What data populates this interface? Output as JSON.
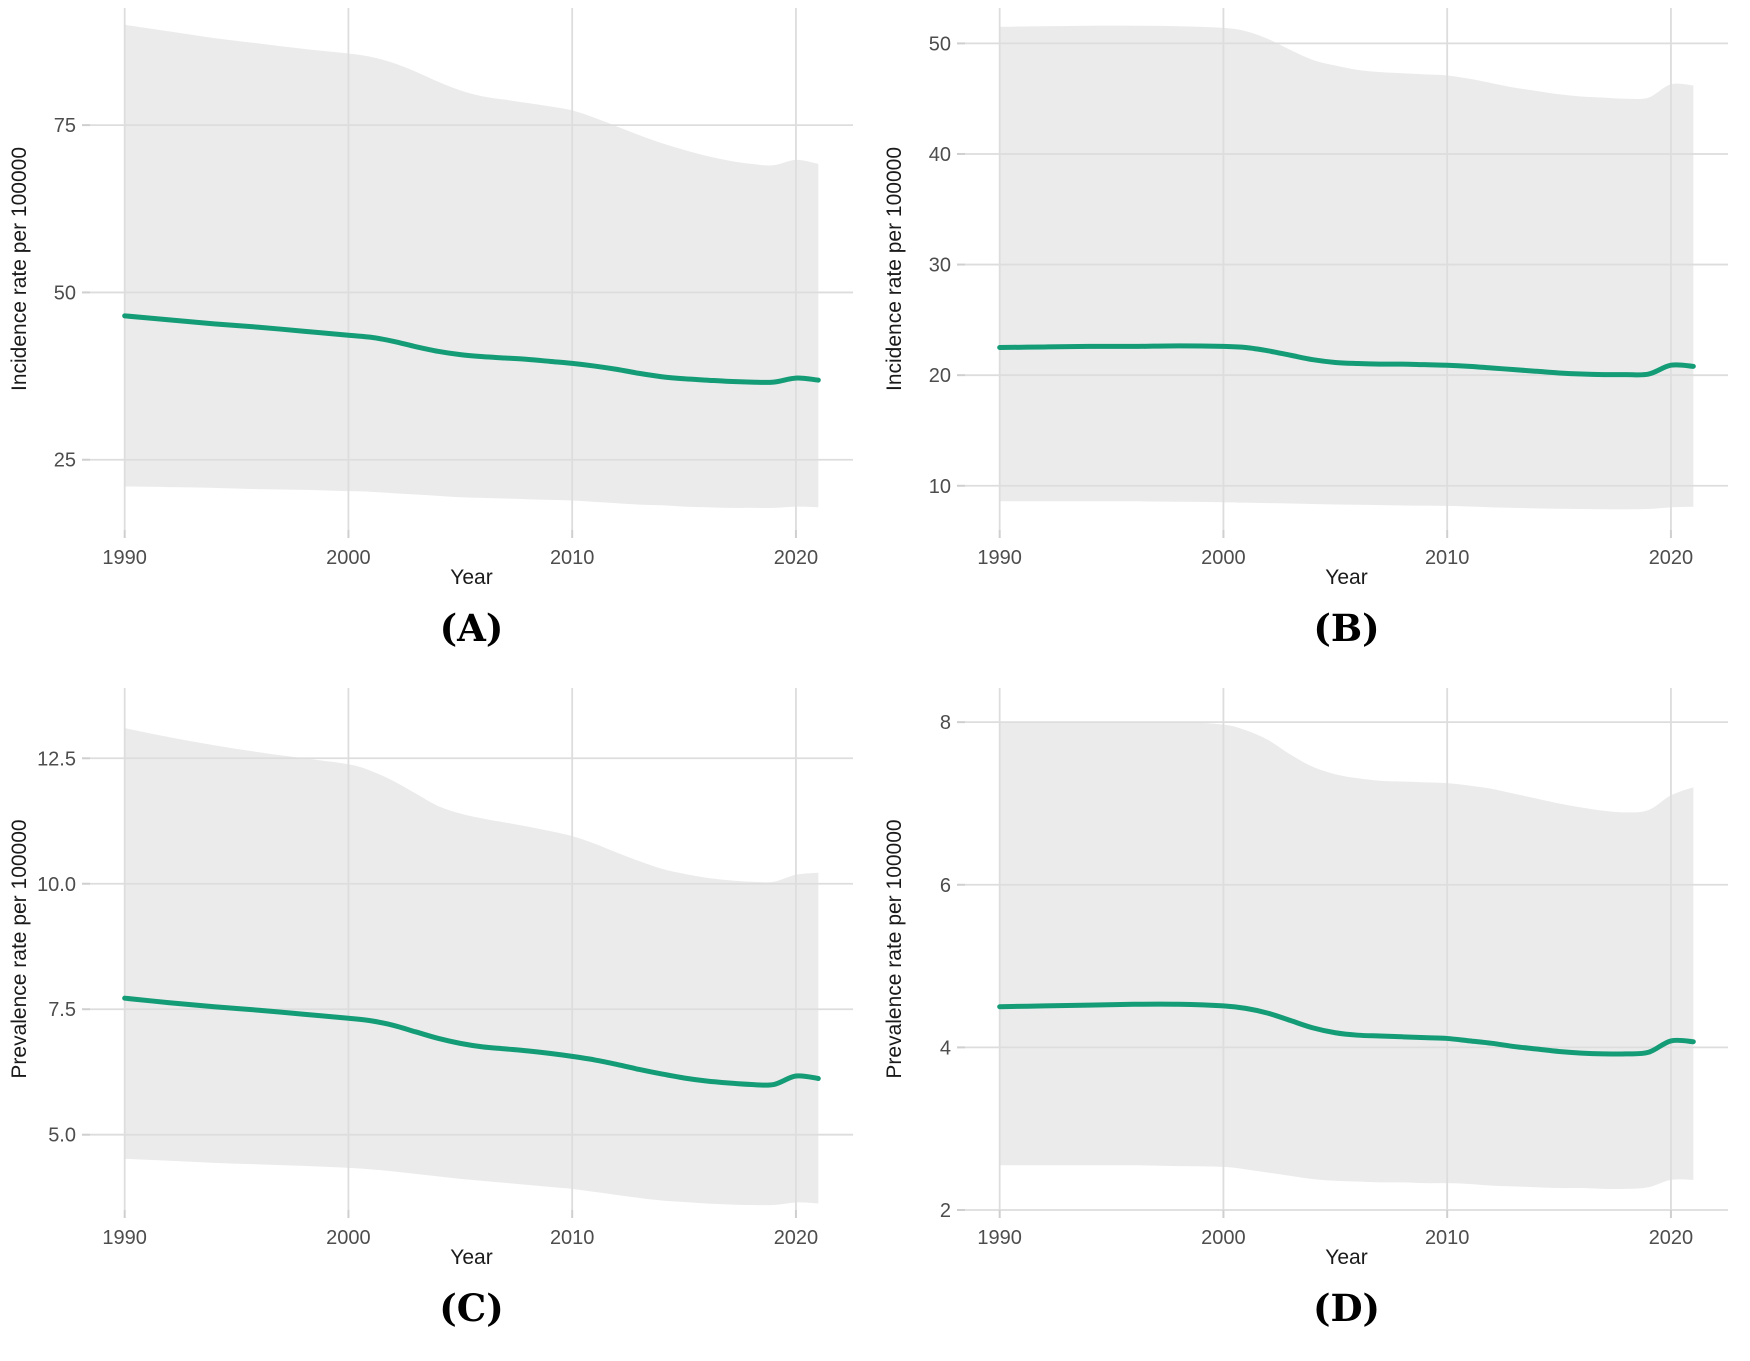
{
  "figure": {
    "background": "#ffffff",
    "line_color": "#149c77",
    "band_color": "#ebebeb",
    "grid_color": "#dddddd",
    "tick_mark_color": "#cfcfcf",
    "tick_label_color": "#4d4d4d",
    "axis_title_color": "#1a1a1a",
    "panel_label_color": "#000000"
  },
  "chart_data": [
    {
      "type": "line",
      "panel_label": "(A)",
      "xlabel": "Year",
      "ylabel": "Incidence rate per 100000",
      "x_ticks": [
        1990,
        2000,
        2010,
        2020
      ],
      "x_tick_labels": [
        "1990",
        "2000",
        "2010",
        "2020"
      ],
      "y_ticks": [
        25,
        50,
        75
      ],
      "y_tick_labels": [
        "25",
        "50",
        "75"
      ],
      "xlim": [
        1988.45,
        2022.55
      ],
      "ylim": [
        14.5,
        92.5
      ],
      "grid": true,
      "legend": "none",
      "x": [
        1990,
        1992,
        1994,
        1996,
        1998,
        2000,
        2001,
        2002,
        2003,
        2004,
        2005,
        2006,
        2007,
        2008,
        2009,
        2010,
        2011,
        2012,
        2013,
        2014,
        2015,
        2016,
        2017,
        2018,
        2019,
        2020,
        2021
      ],
      "series": [
        {
          "name": "mean",
          "role": "line",
          "y": [
            46.5,
            45.9,
            45.3,
            44.8,
            44.2,
            43.6,
            43.3,
            42.7,
            41.9,
            41.2,
            40.7,
            40.4,
            40.2,
            40.0,
            39.7,
            39.4,
            39.0,
            38.5,
            37.9,
            37.4,
            37.1,
            36.9,
            36.7,
            36.6,
            36.6,
            37.2,
            36.9
          ]
        },
        {
          "name": "upper 95% CI",
          "role": "band_upper",
          "y": [
            90.0,
            89.0,
            88.0,
            87.2,
            86.4,
            85.7,
            85.2,
            84.3,
            83.0,
            81.5,
            80.2,
            79.3,
            78.8,
            78.3,
            77.8,
            77.2,
            76.1,
            74.8,
            73.5,
            72.3,
            71.3,
            70.4,
            69.7,
            69.2,
            69.0,
            69.8,
            69.2
          ]
        },
        {
          "name": "lower 95% CI",
          "role": "band_lower",
          "y": [
            21.0,
            20.9,
            20.8,
            20.6,
            20.5,
            20.3,
            20.2,
            20.0,
            19.8,
            19.6,
            19.4,
            19.3,
            19.2,
            19.1,
            19.0,
            18.9,
            18.7,
            18.5,
            18.3,
            18.2,
            18.0,
            17.9,
            17.8,
            17.8,
            17.8,
            18.0,
            17.9
          ]
        }
      ]
    },
    {
      "type": "line",
      "panel_label": "(B)",
      "xlabel": "Year",
      "ylabel": "Incidence rate per 100000",
      "x_ticks": [
        1990,
        2000,
        2010,
        2020
      ],
      "x_tick_labels": [
        "1990",
        "2000",
        "2010",
        "2020"
      ],
      "y_ticks": [
        10,
        20,
        30,
        40,
        50
      ],
      "y_tick_labels": [
        "10",
        "20",
        "30",
        "40",
        "50"
      ],
      "xlim": [
        1988.45,
        2022.55
      ],
      "ylim": [
        6.0,
        53.2
      ],
      "grid": true,
      "legend": "none",
      "x": [
        1990,
        1992,
        1994,
        1996,
        1998,
        2000,
        2001,
        2002,
        2003,
        2004,
        2005,
        2006,
        2007,
        2008,
        2009,
        2010,
        2011,
        2012,
        2013,
        2014,
        2015,
        2016,
        2017,
        2018,
        2019,
        2020,
        2021
      ],
      "series": [
        {
          "name": "mean",
          "role": "line",
          "y": [
            22.5,
            22.55,
            22.6,
            22.6,
            22.65,
            22.6,
            22.5,
            22.2,
            21.8,
            21.4,
            21.15,
            21.05,
            21.0,
            21.0,
            20.95,
            20.9,
            20.8,
            20.65,
            20.5,
            20.35,
            20.2,
            20.1,
            20.05,
            20.05,
            20.1,
            20.9,
            20.8
          ]
        },
        {
          "name": "upper 95% CI",
          "role": "band_upper",
          "y": [
            51.5,
            51.55,
            51.6,
            51.6,
            51.55,
            51.4,
            51.1,
            50.4,
            49.4,
            48.5,
            48.0,
            47.6,
            47.4,
            47.3,
            47.2,
            47.1,
            46.8,
            46.4,
            46.0,
            45.7,
            45.4,
            45.2,
            45.1,
            45.0,
            45.1,
            46.3,
            46.2
          ]
        },
        {
          "name": "lower 95% CI",
          "role": "band_lower",
          "y": [
            8.6,
            8.6,
            8.6,
            8.6,
            8.55,
            8.5,
            8.47,
            8.43,
            8.4,
            8.35,
            8.3,
            8.28,
            8.25,
            8.22,
            8.2,
            8.18,
            8.12,
            8.05,
            8.0,
            7.95,
            7.92,
            7.9,
            7.88,
            7.87,
            7.9,
            8.05,
            8.1
          ]
        }
      ]
    },
    {
      "type": "line",
      "panel_label": "(C)",
      "xlabel": "Year",
      "ylabel": "Prevalence rate per 100000",
      "x_ticks": [
        1990,
        2000,
        2010,
        2020
      ],
      "x_tick_labels": [
        "1990",
        "2000",
        "2010",
        "2020"
      ],
      "y_ticks": [
        5.0,
        7.5,
        10.0,
        12.5
      ],
      "y_tick_labels": [
        "5.0",
        "7.5",
        "10.0",
        "12.5"
      ],
      "xlim": [
        1988.45,
        2022.55
      ],
      "ylim": [
        3.5,
        13.9
      ],
      "grid": true,
      "legend": "none",
      "x": [
        1990,
        1992,
        1994,
        1996,
        1998,
        2000,
        2001,
        2002,
        2003,
        2004,
        2005,
        2006,
        2007,
        2008,
        2009,
        2010,
        2011,
        2012,
        2013,
        2014,
        2015,
        2016,
        2017,
        2018,
        2019,
        2020,
        2021
      ],
      "series": [
        {
          "name": "mean",
          "role": "line",
          "y": [
            7.72,
            7.63,
            7.55,
            7.48,
            7.4,
            7.32,
            7.27,
            7.18,
            7.05,
            6.92,
            6.82,
            6.75,
            6.71,
            6.67,
            6.62,
            6.56,
            6.49,
            6.4,
            6.3,
            6.21,
            6.13,
            6.07,
            6.03,
            6.0,
            6.0,
            6.17,
            6.12
          ]
        },
        {
          "name": "upper 95% CI",
          "role": "band_upper",
          "y": [
            13.1,
            12.92,
            12.76,
            12.62,
            12.5,
            12.38,
            12.25,
            12.05,
            11.8,
            11.55,
            11.4,
            11.3,
            11.22,
            11.14,
            11.05,
            10.95,
            10.8,
            10.62,
            10.45,
            10.3,
            10.2,
            10.12,
            10.07,
            10.04,
            10.04,
            10.18,
            10.22
          ]
        },
        {
          "name": "lower 95% CI",
          "role": "band_lower",
          "y": [
            4.52,
            4.48,
            4.44,
            4.41,
            4.38,
            4.34,
            4.31,
            4.27,
            4.22,
            4.17,
            4.12,
            4.08,
            4.04,
            4.0,
            3.96,
            3.92,
            3.86,
            3.8,
            3.74,
            3.69,
            3.66,
            3.63,
            3.61,
            3.6,
            3.6,
            3.65,
            3.63
          ]
        }
      ]
    },
    {
      "type": "line",
      "panel_label": "(D)",
      "xlabel": "Year",
      "ylabel": "Prevalence rate per 100000",
      "x_ticks": [
        1990,
        2000,
        2010,
        2020
      ],
      "x_tick_labels": [
        "1990",
        "2000",
        "2010",
        "2020"
      ],
      "y_ticks": [
        2,
        4,
        6,
        8
      ],
      "y_tick_labels": [
        "2",
        "4",
        "6",
        "8"
      ],
      "xlim": [
        1988.45,
        2022.55
      ],
      "ylim": [
        2.0,
        8.42
      ],
      "grid": true,
      "legend": "none",
      "x": [
        1990,
        1992,
        1994,
        1996,
        1998,
        2000,
        2001,
        2002,
        2003,
        2004,
        2005,
        2006,
        2007,
        2008,
        2009,
        2010,
        2011,
        2012,
        2013,
        2014,
        2015,
        2016,
        2017,
        2018,
        2019,
        2020,
        2021
      ],
      "series": [
        {
          "name": "mean",
          "role": "line",
          "y": [
            4.5,
            4.51,
            4.52,
            4.53,
            4.53,
            4.51,
            4.48,
            4.42,
            4.33,
            4.24,
            4.18,
            4.15,
            4.14,
            4.13,
            4.12,
            4.11,
            4.08,
            4.05,
            4.01,
            3.98,
            3.95,
            3.93,
            3.92,
            3.92,
            3.94,
            4.08,
            4.07
          ]
        },
        {
          "name": "upper 95% CI",
          "role": "band_upper",
          "y": [
            8.0,
            8.0,
            8.0,
            8.0,
            8.0,
            7.97,
            7.9,
            7.78,
            7.6,
            7.45,
            7.36,
            7.31,
            7.28,
            7.27,
            7.26,
            7.25,
            7.22,
            7.18,
            7.12,
            7.06,
            7.0,
            6.95,
            6.91,
            6.89,
            6.92,
            7.1,
            7.2
          ]
        },
        {
          "name": "lower 95% CI",
          "role": "band_lower",
          "y": [
            2.55,
            2.55,
            2.55,
            2.55,
            2.54,
            2.53,
            2.5,
            2.46,
            2.42,
            2.38,
            2.36,
            2.35,
            2.34,
            2.34,
            2.33,
            2.33,
            2.32,
            2.3,
            2.29,
            2.28,
            2.27,
            2.27,
            2.26,
            2.26,
            2.28,
            2.37,
            2.37
          ]
        }
      ]
    }
  ]
}
